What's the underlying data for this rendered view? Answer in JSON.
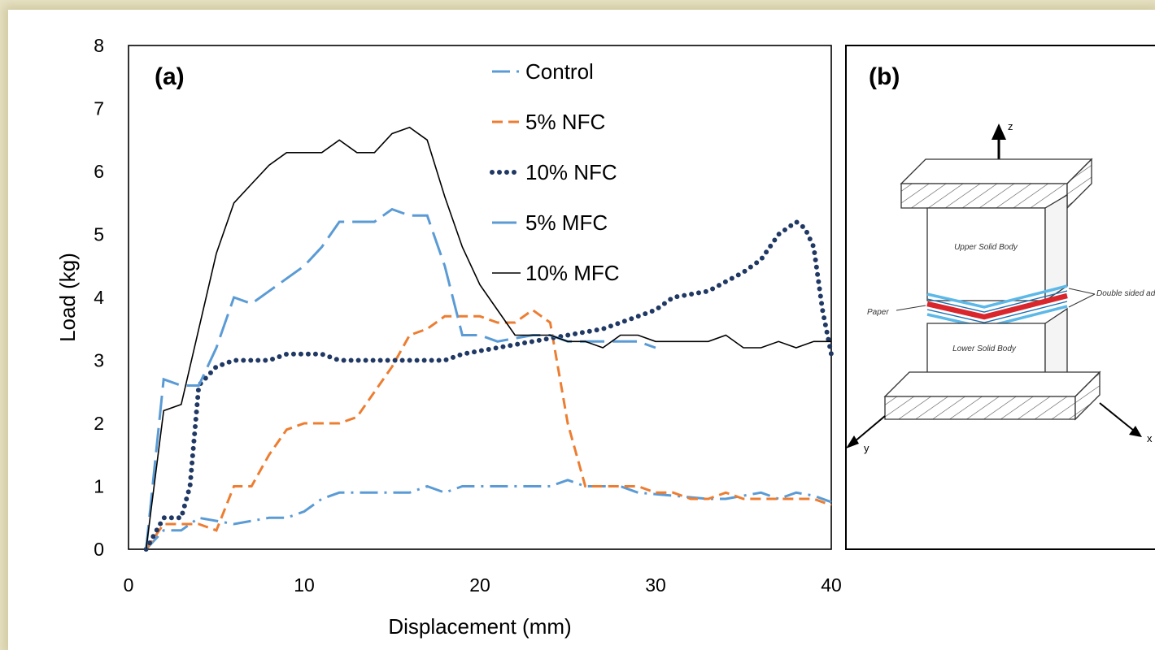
{
  "chart_data": [
    {
      "type": "line",
      "panel_label": "(a)",
      "xlabel": "Displacement (mm)",
      "ylabel": "Load (kg)",
      "xlim": [
        0,
        40
      ],
      "ylim": [
        0,
        8
      ],
      "xticks": [
        "0",
        "10",
        "20",
        "30",
        "40"
      ],
      "yticks": [
        "0",
        "1",
        "2",
        "3",
        "4",
        "5",
        "6",
        "7",
        "8"
      ],
      "grid": false,
      "legend_position": "top-center",
      "series": [
        {
          "name": "Control",
          "color": "#5b9bd5",
          "dash": "dashdot",
          "points": [
            [
              1,
              0
            ],
            [
              2,
              0.3
            ],
            [
              3,
              0.3
            ],
            [
              4,
              0.5
            ],
            [
              5,
              0.45
            ],
            [
              6,
              0.4
            ],
            [
              7,
              0.45
            ],
            [
              8,
              0.5
            ],
            [
              9,
              0.5
            ],
            [
              10,
              0.6
            ],
            [
              11,
              0.8
            ],
            [
              12,
              0.9
            ],
            [
              14,
              0.9
            ],
            [
              16,
              0.9
            ],
            [
              17,
              1.0
            ],
            [
              18,
              0.9
            ],
            [
              19,
              1.0
            ],
            [
              22,
              1.0
            ],
            [
              24,
              1.0
            ],
            [
              25,
              1.1
            ],
            [
              26,
              1.0
            ],
            [
              28,
              1.0
            ],
            [
              29,
              0.9
            ],
            [
              31,
              0.85
            ],
            [
              33,
              0.8
            ],
            [
              34,
              0.8
            ],
            [
              35,
              0.85
            ],
            [
              36,
              0.9
            ],
            [
              37,
              0.8
            ],
            [
              38,
              0.9
            ],
            [
              39,
              0.85
            ],
            [
              40,
              0.75
            ]
          ]
        },
        {
          "name": "5% NFC",
          "color": "#ed7d31",
          "dash": "dashed",
          "points": [
            [
              1,
              0
            ],
            [
              2,
              0.4
            ],
            [
              3,
              0.4
            ],
            [
              4,
              0.4
            ],
            [
              5,
              0.3
            ],
            [
              6,
              1.0
            ],
            [
              7,
              1.0
            ],
            [
              8,
              1.5
            ],
            [
              9,
              1.9
            ],
            [
              10,
              2.0
            ],
            [
              12,
              2.0
            ],
            [
              13,
              2.1
            ],
            [
              14,
              2.5
            ],
            [
              15,
              2.9
            ],
            [
              16,
              3.4
            ],
            [
              17,
              3.5
            ],
            [
              18,
              3.7
            ],
            [
              20,
              3.7
            ],
            [
              21,
              3.6
            ],
            [
              22,
              3.6
            ],
            [
              23,
              3.8
            ],
            [
              24,
              3.6
            ],
            [
              25,
              2.0
            ],
            [
              26,
              1.0
            ],
            [
              28,
              1.0
            ],
            [
              29,
              1.0
            ],
            [
              30,
              0.9
            ],
            [
              31,
              0.9
            ],
            [
              32,
              0.8
            ],
            [
              33,
              0.8
            ],
            [
              34,
              0.9
            ],
            [
              35,
              0.8
            ],
            [
              37,
              0.8
            ],
            [
              39,
              0.8
            ],
            [
              40,
              0.7
            ]
          ]
        },
        {
          "name": "10% NFC",
          "color": "#203864",
          "dash": "dotted",
          "points": [
            [
              1,
              0
            ],
            [
              2,
              0.5
            ],
            [
              3,
              0.5
            ],
            [
              3.5,
              1.0
            ],
            [
              4,
              2.6
            ],
            [
              5,
              2.9
            ],
            [
              6,
              3.0
            ],
            [
              8,
              3.0
            ],
            [
              9,
              3.1
            ],
            [
              11,
              3.1
            ],
            [
              12,
              3.0
            ],
            [
              14,
              3.0
            ],
            [
              16,
              3.0
            ],
            [
              18,
              3.0
            ],
            [
              19,
              3.1
            ],
            [
              21,
              3.2
            ],
            [
              23,
              3.3
            ],
            [
              25,
              3.4
            ],
            [
              27,
              3.5
            ],
            [
              29,
              3.7
            ],
            [
              30,
              3.8
            ],
            [
              31,
              4.0
            ],
            [
              33,
              4.1
            ],
            [
              35,
              4.4
            ],
            [
              36,
              4.6
            ],
            [
              37,
              5.0
            ],
            [
              38,
              5.2
            ],
            [
              38.5,
              5.1
            ],
            [
              39,
              4.8
            ],
            [
              39.5,
              3.8
            ],
            [
              40,
              3.1
            ]
          ]
        },
        {
          "name": "5% MFC",
          "color": "#5b9bd5",
          "dash": "longdash",
          "points": [
            [
              1,
              0
            ],
            [
              2,
              2.7
            ],
            [
              3,
              2.6
            ],
            [
              4,
              2.6
            ],
            [
              5,
              3.2
            ],
            [
              6,
              4.0
            ],
            [
              7,
              3.9
            ],
            [
              8,
              4.1
            ],
            [
              9,
              4.3
            ],
            [
              10,
              4.5
            ],
            [
              11,
              4.8
            ],
            [
              12,
              5.2
            ],
            [
              14,
              5.2
            ],
            [
              15,
              5.4
            ],
            [
              16,
              5.3
            ],
            [
              17,
              5.3
            ],
            [
              18,
              4.5
            ],
            [
              19,
              3.4
            ],
            [
              20,
              3.4
            ],
            [
              21,
              3.3
            ],
            [
              23,
              3.4
            ],
            [
              24,
              3.4
            ],
            [
              25,
              3.3
            ],
            [
              27,
              3.3
            ],
            [
              29,
              3.3
            ],
            [
              30,
              3.2
            ]
          ]
        },
        {
          "name": "10% MFC",
          "color": "#000000",
          "dash": "solid",
          "points": [
            [
              1,
              0
            ],
            [
              2,
              2.2
            ],
            [
              3,
              2.3
            ],
            [
              4,
              3.5
            ],
            [
              5,
              4.7
            ],
            [
              6,
              5.5
            ],
            [
              7,
              5.8
            ],
            [
              8,
              6.1
            ],
            [
              9,
              6.3
            ],
            [
              10,
              6.3
            ],
            [
              11,
              6.3
            ],
            [
              12,
              6.5
            ],
            [
              13,
              6.3
            ],
            [
              14,
              6.3
            ],
            [
              15,
              6.6
            ],
            [
              16,
              6.7
            ],
            [
              17,
              6.5
            ],
            [
              18,
              5.6
            ],
            [
              19,
              4.8
            ],
            [
              20,
              4.2
            ],
            [
              21,
              3.8
            ],
            [
              22,
              3.4
            ],
            [
              23,
              3.4
            ],
            [
              24,
              3.4
            ],
            [
              25,
              3.3
            ],
            [
              26,
              3.3
            ],
            [
              27,
              3.2
            ],
            [
              28,
              3.4
            ],
            [
              29,
              3.4
            ],
            [
              30,
              3.3
            ],
            [
              31,
              3.3
            ],
            [
              32,
              3.3
            ],
            [
              33,
              3.3
            ],
            [
              34,
              3.4
            ],
            [
              35,
              3.2
            ],
            [
              36,
              3.2
            ],
            [
              37,
              3.3
            ],
            [
              38,
              3.2
            ],
            [
              39,
              3.3
            ],
            [
              40,
              3.3
            ]
          ]
        }
      ]
    }
  ],
  "diagram": {
    "panel_label": "(b)",
    "upper_block": "Upper Solid Body",
    "lower_block": "Lower Solid Body",
    "paper_label": "Paper",
    "adhesive_label": "Double sided adhesive",
    "axis_z": "z",
    "axis_y": "y",
    "axis_x": "x",
    "paper_color": "#d9262c",
    "adhesive_color": "#5bb8e8"
  }
}
